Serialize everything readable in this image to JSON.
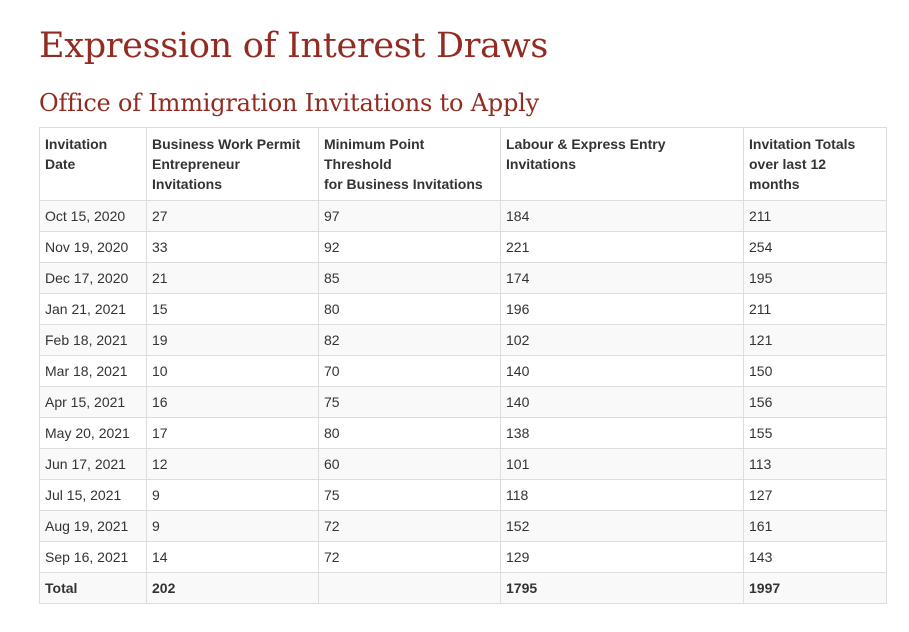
{
  "page": {
    "title": "Expression of Interest Draws",
    "subtitle": "Office of Immigration Invitations to Apply"
  },
  "table": {
    "headers": [
      [
        "Invitation",
        "Date"
      ],
      [
        "Business Work Permit",
        "Entrepreneur",
        "Invitations"
      ],
      [
        "Minimum Point",
        "Threshold",
        "for Business Invitations"
      ],
      [
        "Labour & Express Entry",
        "Invitations"
      ],
      [
        "Invitation Totals",
        "over last 12",
        "months"
      ]
    ],
    "rows": [
      [
        "Oct 15, 2020",
        "27",
        "97",
        "184",
        "211"
      ],
      [
        "Nov 19, 2020",
        "33",
        "92",
        "221",
        "254"
      ],
      [
        "Dec 17, 2020",
        "21",
        "85",
        "174",
        "195"
      ],
      [
        "Jan 21, 2021",
        "15",
        "80",
        "196",
        "211"
      ],
      [
        "Feb 18, 2021",
        "19",
        "82",
        "102",
        "121"
      ],
      [
        "Mar 18, 2021",
        "10",
        "70",
        "140",
        "150"
      ],
      [
        "Apr 15, 2021",
        "16",
        "75",
        "140",
        "156"
      ],
      [
        "May 20, 2021",
        "17",
        "80",
        "138",
        "155"
      ],
      [
        "Jun 17, 2021",
        "12",
        "60",
        "101",
        "113"
      ],
      [
        "Jul 15, 2021",
        "9",
        "75",
        "118",
        "127"
      ],
      [
        "Aug 19, 2021",
        "9",
        "72",
        "152",
        "161"
      ],
      [
        "Sep 16, 2021",
        "14",
        "72",
        "129",
        "143"
      ]
    ],
    "total": [
      "Total",
      "202",
      "",
      "1795",
      "1997"
    ]
  }
}
